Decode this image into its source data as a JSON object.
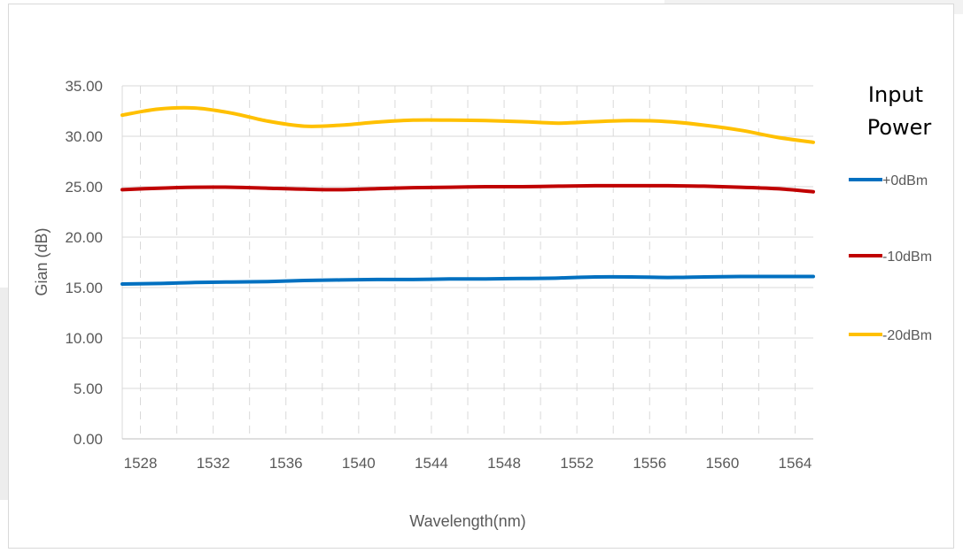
{
  "chart_data": {
    "type": "line",
    "xlabel": "Wavelength(nm)",
    "ylabel": "Gian (dB)",
    "xlim": [
      1527,
      1565
    ],
    "ylim": [
      0,
      35
    ],
    "x_ticks": [
      "1528",
      "1532",
      "1536",
      "1540",
      "1544",
      "1548",
      "1552",
      "1556",
      "1560",
      "1564"
    ],
    "y_ticks": [
      "0.00",
      "5.00",
      "10.00",
      "15.00",
      "20.00",
      "25.00",
      "30.00",
      "35.00"
    ],
    "grid": "dashed vertical, solid horizontal",
    "legend_title_lines": [
      "Input",
      "Power"
    ],
    "legend_position": "right",
    "x": [
      1527,
      1529,
      1531,
      1533,
      1535,
      1537,
      1539,
      1541,
      1543,
      1545,
      1547,
      1549,
      1551,
      1553,
      1555,
      1557,
      1559,
      1561,
      1563,
      1565
    ],
    "series": [
      {
        "name": "+0dBm",
        "color": "#0070C0",
        "values": [
          15.35,
          15.4,
          15.5,
          15.55,
          15.6,
          15.7,
          15.75,
          15.8,
          15.8,
          15.85,
          15.85,
          15.9,
          15.95,
          16.05,
          16.05,
          16.0,
          16.05,
          16.1,
          16.1,
          16.1
        ]
      },
      {
        "name": "-10dBm",
        "color": "#C00000",
        "values": [
          24.7,
          24.85,
          24.95,
          24.95,
          24.85,
          24.75,
          24.7,
          24.8,
          24.9,
          24.95,
          25.0,
          25.0,
          25.05,
          25.1,
          25.1,
          25.1,
          25.05,
          24.95,
          24.8,
          24.5
        ]
      },
      {
        "name": "-20dBm",
        "color": "#FFC000",
        "values": [
          32.1,
          32.7,
          32.8,
          32.3,
          31.5,
          31.0,
          31.1,
          31.4,
          31.6,
          31.6,
          31.55,
          31.45,
          31.3,
          31.45,
          31.55,
          31.45,
          31.1,
          30.6,
          29.9,
          29.4
        ]
      }
    ]
  }
}
